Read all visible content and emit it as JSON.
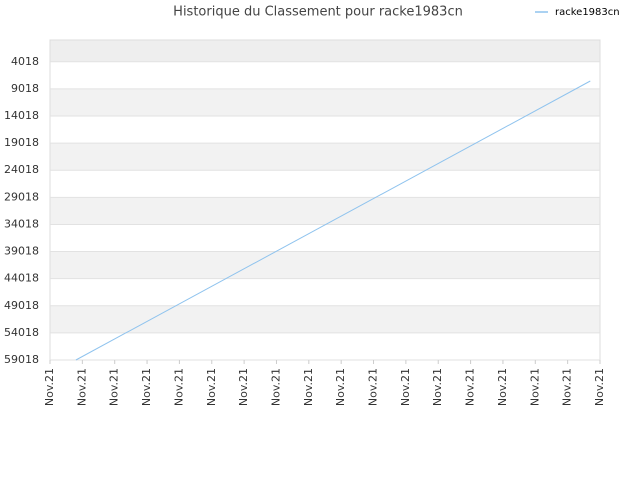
{
  "chart_data": {
    "type": "line",
    "title": "Historique du Classement pour racke1983cn",
    "x": [
      0.8,
      16.7
    ],
    "series": [
      {
        "name": "racke1983cn",
        "color": "#8fc3ee",
        "values": [
          59018,
          7562
        ]
      }
    ],
    "xlim": [
      0,
      17
    ],
    "xticks": [
      {
        "value": 0,
        "label": "Nov.21"
      },
      {
        "value": 1,
        "label": "Nov.21"
      },
      {
        "value": 2,
        "label": "Nov.21"
      },
      {
        "value": 3,
        "label": "Nov.21"
      },
      {
        "value": 4,
        "label": "Nov.21"
      },
      {
        "value": 5,
        "label": "Nov.21"
      },
      {
        "value": 6,
        "label": "Nov.21"
      },
      {
        "value": 7,
        "label": "Nov.21"
      },
      {
        "value": 8,
        "label": "Nov.21"
      },
      {
        "value": 9,
        "label": "Nov.21"
      },
      {
        "value": 10,
        "label": "Nov.21"
      },
      {
        "value": 11,
        "label": "Nov.21"
      },
      {
        "value": 12,
        "label": "Nov.21"
      },
      {
        "value": 13,
        "label": "Nov.21"
      },
      {
        "value": 14,
        "label": "Nov.21"
      },
      {
        "value": 15,
        "label": "Nov.21"
      },
      {
        "value": 16,
        "label": "Nov.21"
      },
      {
        "value": 17,
        "label": "Nov.21"
      }
    ],
    "ylim": [
      59018,
      0
    ],
    "yticks": [
      4018,
      9018,
      14018,
      19018,
      24018,
      29018,
      34018,
      39018,
      44018,
      49018,
      54018,
      59018
    ],
    "grid": true,
    "legend": "top-right"
  }
}
